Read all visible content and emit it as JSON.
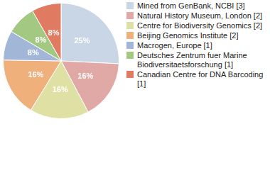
{
  "chart_data": {
    "type": "pie",
    "categories": [
      "Mined from GenBank, NCBI [3]",
      "Natural History Museum, London [2]",
      "Centre for Biodiversity Genomics [2]",
      "Beijing Genomics Institute [2]",
      "Macrogen, Europe [1]",
      "Deutsches Zentrum fuer Marine Biodiversitaetsforschung [1]",
      "Canadian Centre for DNA Barcoding [1]"
    ],
    "values": [
      25,
      16,
      16,
      16,
      8,
      8,
      8
    ],
    "value_labels": [
      "25%",
      "16%",
      "16%",
      "16%",
      "8%",
      "8%",
      "8%"
    ],
    "colors": [
      "#c9d6e5",
      "#e0a9a6",
      "#dfe0a3",
      "#f0b07c",
      "#a2b6d8",
      "#a2c882",
      "#e07b62"
    ],
    "data_labels": true,
    "legend": "right"
  }
}
